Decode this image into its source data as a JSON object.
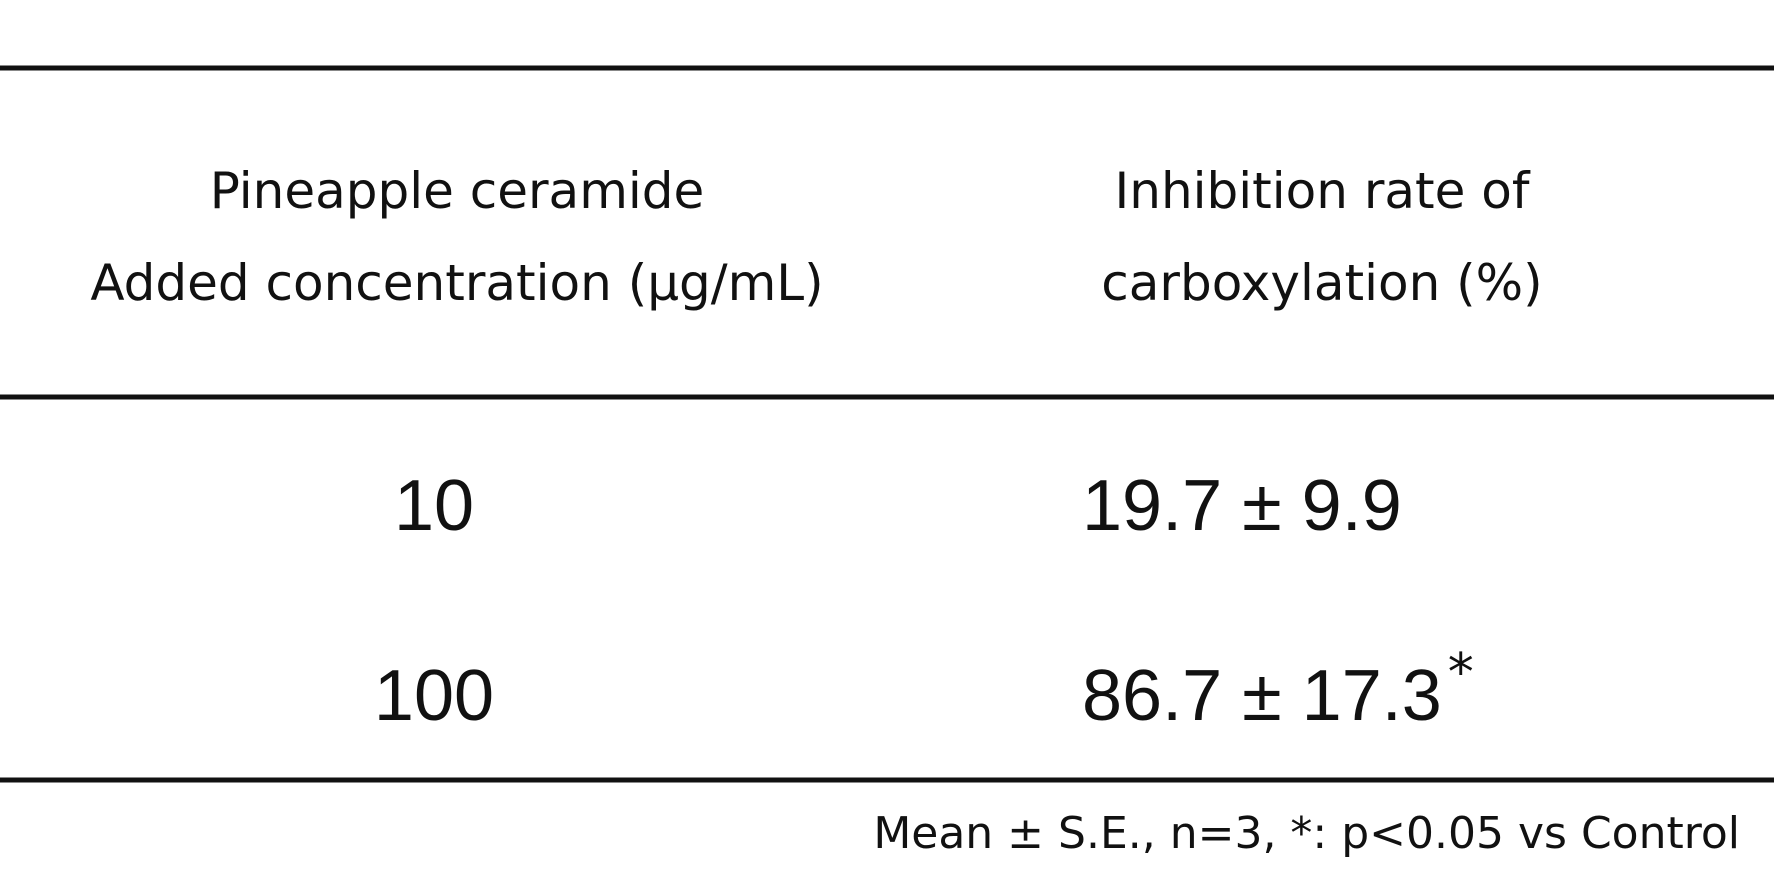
{
  "table": {
    "header": [
      [
        "Pineapple ceramide",
        "Added concentration (μg/mL)"
      ],
      [
        "Inhibition rate of",
        "carboxylation (%)"
      ]
    ],
    "rows": [
      [
        {
          "text": "10"
        },
        {
          "text": "19.7 ± 9.9"
        }
      ],
      [
        {
          "text": "100"
        },
        {
          "text": "86.7 ± 17.3",
          "note": "*"
        }
      ]
    ],
    "footnote": "Mean ± S.E., n=3, *: p<0.05 vs Control"
  }
}
